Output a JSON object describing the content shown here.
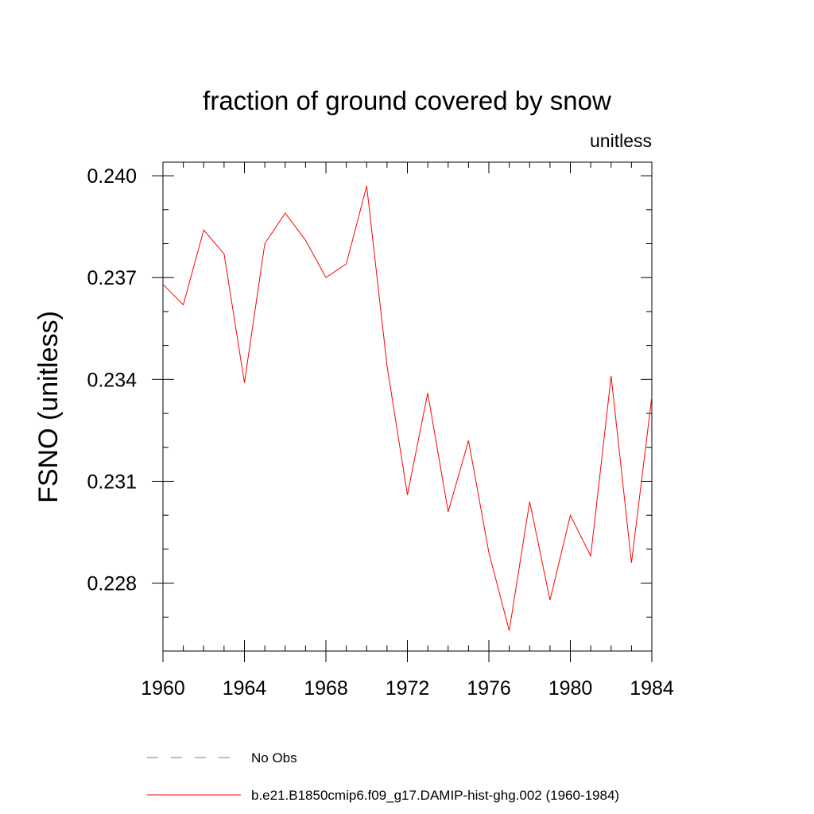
{
  "chart_data": {
    "type": "line",
    "title": "fraction of ground covered by snow",
    "units_label": "unitless",
    "xlabel": "",
    "ylabel": "FSNO  (unitless)",
    "xlim": [
      1960,
      1984
    ],
    "ylim": [
      0.226,
      0.2404
    ],
    "xticks": [
      1960,
      1964,
      1968,
      1972,
      1976,
      1980,
      1984
    ],
    "xtick_labels": [
      "1960",
      "1964",
      "1968",
      "1972",
      "1976",
      "1980",
      "1984"
    ],
    "yticks": [
      0.228,
      0.231,
      0.234,
      0.237,
      0.24
    ],
    "ytick_labels": [
      "0.228",
      "0.231",
      "0.234",
      "0.237",
      "0.240"
    ],
    "grid": false,
    "legend_position": "bottom",
    "colors": {
      "model": "#ff0000",
      "obs": "#7b6fd6"
    },
    "series": [
      {
        "name": "b.e21.B1850cmip6.f09_g17.DAMIP-hist-ghg.002 (1960-1984)",
        "color": "#ff0000",
        "style": "solid",
        "x": [
          1960,
          1961,
          1962,
          1963,
          1964,
          1965,
          1966,
          1967,
          1968,
          1969,
          1970,
          1971,
          1972,
          1973,
          1974,
          1975,
          1976,
          1977,
          1978,
          1979,
          1980,
          1981,
          1982,
          1983,
          1984
        ],
        "y": [
          0.2368,
          0.2362,
          0.2384,
          0.2377,
          0.2339,
          0.238,
          0.2389,
          0.2381,
          0.237,
          0.2374,
          0.2397,
          0.2344,
          0.2306,
          0.2336,
          0.2301,
          0.2322,
          0.2289,
          0.2266,
          0.2304,
          0.2275,
          0.23,
          0.2288,
          0.2341,
          0.2286,
          0.2335
        ]
      },
      {
        "name": "No Obs",
        "color": "#7b6fd6",
        "style": "dashed",
        "x": [],
        "y": []
      }
    ]
  }
}
